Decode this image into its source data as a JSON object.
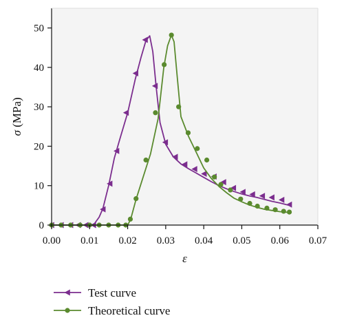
{
  "chart_data": {
    "type": "line",
    "title": "",
    "xlabel": "ε",
    "ylabel": "σ (MPa)",
    "xlim": [
      0,
      0.07
    ],
    "ylim": [
      0,
      55
    ],
    "xticks": [
      0.0,
      0.01,
      0.02,
      0.03,
      0.04,
      0.05,
      0.06,
      0.07
    ],
    "xtick_labels": [
      "0.00",
      "0.01",
      "0.02",
      "0.03",
      "0.04",
      "0.05",
      "0.06",
      "0.07"
    ],
    "yticks": [
      0,
      10,
      20,
      30,
      40,
      50
    ],
    "ytick_labels": [
      "0",
      "10",
      "20",
      "30",
      "40",
      "50"
    ],
    "grid": false,
    "legend_position": "bottom-left",
    "series": [
      {
        "name": "Test curve",
        "color": "#7b2d8e",
        "marker": "triangle-left",
        "line": [
          [
            0.0,
            0
          ],
          [
            0.011,
            0
          ],
          [
            0.0125,
            2
          ],
          [
            0.0135,
            4.2
          ],
          [
            0.015,
            10
          ],
          [
            0.0165,
            17
          ],
          [
            0.018,
            22
          ],
          [
            0.02,
            28.5
          ],
          [
            0.022,
            37
          ],
          [
            0.0235,
            42.5
          ],
          [
            0.0248,
            46.8
          ],
          [
            0.0258,
            48
          ],
          [
            0.0266,
            44
          ],
          [
            0.0275,
            35
          ],
          [
            0.0285,
            26
          ],
          [
            0.03,
            20.5
          ],
          [
            0.032,
            17.3
          ],
          [
            0.034,
            15.5
          ],
          [
            0.036,
            14.3
          ],
          [
            0.038,
            13.2
          ],
          [
            0.04,
            12.1
          ],
          [
            0.042,
            11
          ],
          [
            0.044,
            10
          ],
          [
            0.046,
            9.2
          ],
          [
            0.048,
            8.5
          ],
          [
            0.05,
            7.9
          ],
          [
            0.052,
            7.4
          ],
          [
            0.054,
            7
          ],
          [
            0.056,
            6.5
          ],
          [
            0.058,
            6
          ],
          [
            0.06,
            5.6
          ],
          [
            0.0625,
            5
          ]
        ],
        "markers": [
          [
            0.0,
            0
          ],
          [
            0.0025,
            0
          ],
          [
            0.005,
            0
          ],
          [
            0.007,
            0
          ],
          [
            0.009,
            0
          ],
          [
            0.011,
            0
          ],
          [
            0.0135,
            4
          ],
          [
            0.0153,
            10.5
          ],
          [
            0.0171,
            18.8
          ],
          [
            0.0196,
            28.5
          ],
          [
            0.0221,
            38.5
          ],
          [
            0.0246,
            47
          ],
          [
            0.0272,
            35.3
          ],
          [
            0.0299,
            21
          ],
          [
            0.0325,
            17.3
          ],
          [
            0.035,
            15.4
          ],
          [
            0.0376,
            14.2
          ],
          [
            0.0401,
            13
          ],
          [
            0.0427,
            12.3
          ],
          [
            0.0452,
            10.9
          ],
          [
            0.0478,
            9.4
          ],
          [
            0.0503,
            8.4
          ],
          [
            0.0528,
            7.8
          ],
          [
            0.0554,
            7.4
          ],
          [
            0.0579,
            7
          ],
          [
            0.0605,
            6.4
          ],
          [
            0.0625,
            5.2
          ]
        ]
      },
      {
        "name": "Theoretical curve",
        "color": "#5a8a2e",
        "marker": "circle",
        "line": [
          [
            0.0,
            0
          ],
          [
            0.02,
            0
          ],
          [
            0.0208,
            1.5
          ],
          [
            0.0222,
            6.5
          ],
          [
            0.024,
            12
          ],
          [
            0.026,
            18
          ],
          [
            0.028,
            27
          ],
          [
            0.0295,
            40
          ],
          [
            0.0305,
            45.5
          ],
          [
            0.0315,
            48.2
          ],
          [
            0.0322,
            46.5
          ],
          [
            0.033,
            38
          ],
          [
            0.034,
            27.5
          ],
          [
            0.036,
            22.5
          ],
          [
            0.038,
            18.5
          ],
          [
            0.04,
            14.5
          ],
          [
            0.042,
            11.8
          ],
          [
            0.044,
            9.8
          ],
          [
            0.046,
            8.2
          ],
          [
            0.048,
            6.8
          ],
          [
            0.05,
            5.9
          ],
          [
            0.052,
            5.1
          ],
          [
            0.054,
            4.5
          ],
          [
            0.056,
            4
          ],
          [
            0.058,
            3.7
          ],
          [
            0.06,
            3.4
          ],
          [
            0.0625,
            3.2
          ]
        ],
        "markers": [
          [
            0.0,
            0
          ],
          [
            0.0025,
            0
          ],
          [
            0.005,
            0
          ],
          [
            0.0075,
            0
          ],
          [
            0.01,
            0
          ],
          [
            0.0125,
            0
          ],
          [
            0.015,
            0
          ],
          [
            0.0175,
            0
          ],
          [
            0.0195,
            0
          ],
          [
            0.0207,
            1.5
          ],
          [
            0.0222,
            6.7
          ],
          [
            0.0248,
            16.5
          ],
          [
            0.0273,
            28.5
          ],
          [
            0.0296,
            40.7
          ],
          [
            0.0315,
            48.2
          ],
          [
            0.0334,
            30
          ],
          [
            0.0359,
            23.4
          ],
          [
            0.0383,
            19.4
          ],
          [
            0.0408,
            16.5
          ],
          [
            0.0428,
            12.2
          ],
          [
            0.0445,
            10.3
          ],
          [
            0.047,
            8.9
          ],
          [
            0.0497,
            6.6
          ],
          [
            0.0521,
            5.5
          ],
          [
            0.0541,
            4.8
          ],
          [
            0.0566,
            4.3
          ],
          [
            0.0588,
            3.9
          ],
          [
            0.061,
            3.5
          ],
          [
            0.0625,
            3.3
          ]
        ]
      }
    ]
  }
}
